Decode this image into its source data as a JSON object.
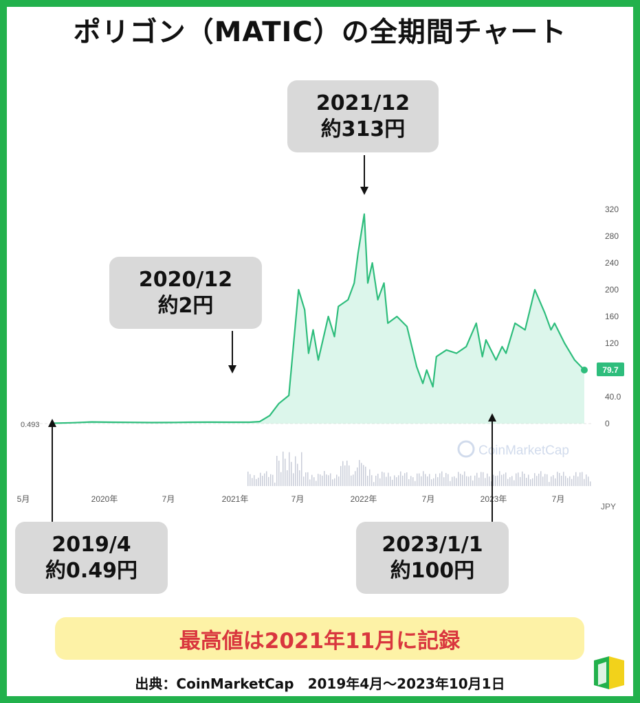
{
  "header": {
    "title": "ポリゴン（MATIC）の全期間チャート"
  },
  "colors": {
    "frame": "#22b14c",
    "line": "#2ebd7c",
    "fill": "#bfeedb",
    "callout_bg": "#d9d9d9",
    "banner_bg": "#fdf2a6",
    "banner_text": "#d9363e"
  },
  "callouts": {
    "c2021_12": {
      "date": "2021/12",
      "price": "約313円"
    },
    "c2020_12": {
      "date": "2020/12",
      "price": "約2円"
    },
    "c2019_4": {
      "date": "2019/4",
      "price": "約0.49円"
    },
    "c2023_1_1": {
      "date": "2023/1/1",
      "price": "約100円"
    }
  },
  "banner": {
    "text": "最高値は2021年11月に記録"
  },
  "source": {
    "text": "出典：CoinMarketCap　2019年4月〜2023年10月1日"
  },
  "chart_data": {
    "type": "area",
    "x_tick_labels": [
      "5月",
      "2020年",
      "7月",
      "2021年",
      "7月",
      "2022年",
      "7月",
      "2023年",
      "7月"
    ],
    "y_tick_labels": [
      "320",
      "280",
      "240",
      "200",
      "160",
      "120",
      "80.0",
      "40.0",
      "0"
    ],
    "ylim": [
      0,
      340
    ],
    "y_unit_label": "JPY",
    "start_value_label": "0.493",
    "current_value_label": "79.7",
    "watermark": "CoinMarketCap",
    "grid": false,
    "x": [
      "2019-04",
      "2019-06",
      "2019-08",
      "2019-10",
      "2019-12",
      "2020-02",
      "2020-04",
      "2020-06",
      "2020-08",
      "2020-10",
      "2020-12",
      "2021-01",
      "2021-02",
      "2021-03",
      "2021-04",
      "2021-05",
      "2021-05-20",
      "2021-06",
      "2021-06-15",
      "2021-07",
      "2021-08",
      "2021-08-20",
      "2021-09",
      "2021-10",
      "2021-10-20",
      "2021-11",
      "2021-11-20",
      "2021-12",
      "2021-12-15",
      "2022-01",
      "2022-01-20",
      "2022-02",
      "2022-03",
      "2022-04",
      "2022-05",
      "2022-05-20",
      "2022-06",
      "2022-06-20",
      "2022-07",
      "2022-08",
      "2022-09",
      "2022-10",
      "2022-11",
      "2022-11-20",
      "2022-12",
      "2023-01",
      "2023-01-20",
      "2023-02",
      "2023-03",
      "2023-04",
      "2023-05",
      "2023-06",
      "2023-06-20",
      "2023-07",
      "2023-08",
      "2023-09",
      "2023-10"
    ],
    "values": [
      0.5,
      1.2,
      2.5,
      2.0,
      1.8,
      1.5,
      1.6,
      2.0,
      2.2,
      2.0,
      2.0,
      3,
      12,
      30,
      42,
      200,
      170,
      105,
      140,
      95,
      160,
      130,
      175,
      185,
      210,
      255,
      313,
      210,
      240,
      185,
      210,
      150,
      160,
      145,
      85,
      60,
      80,
      55,
      100,
      110,
      105,
      115,
      150,
      100,
      125,
      95,
      115,
      105,
      150,
      140,
      200,
      165,
      140,
      150,
      120,
      95,
      80
    ]
  }
}
